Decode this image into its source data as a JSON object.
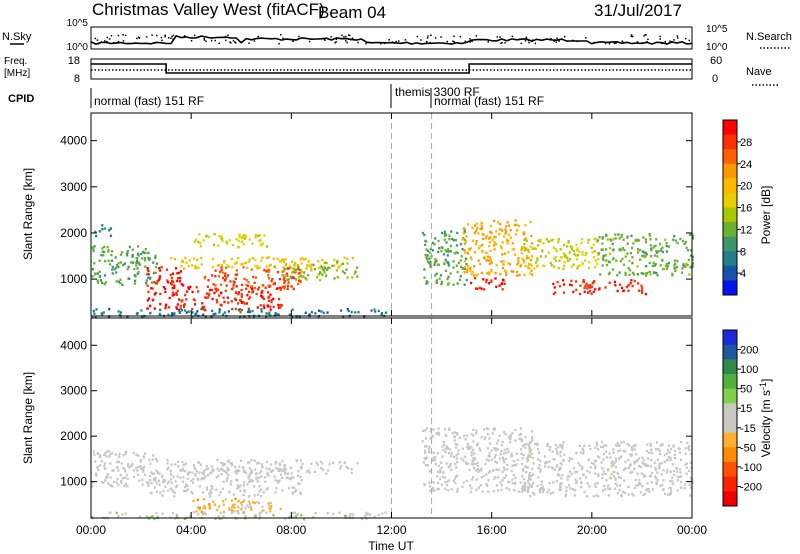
{
  "header": {
    "station": "Christmas Valley West (fitACF)",
    "beam": "Beam 04",
    "date": "31/Jul/2017"
  },
  "top_panels": {
    "nsky_label": "N.Sky",
    "nsearch_label": "N.Search",
    "noise_ticks": [
      "10^5",
      "10^0"
    ],
    "freq_label": "Freq.",
    "freq_unit": "[MHz]",
    "freq_ticks": [
      "18",
      "8"
    ],
    "nave_label": "Nave",
    "nave_ticks": [
      "60",
      "0"
    ],
    "cpid_label": "CPID",
    "cpid_segments": [
      {
        "label": "normal (fast) 151 RF",
        "start_hour": 0,
        "end_hour": 12.0
      },
      {
        "label": "themis 3300 RF",
        "start_hour": 12.0,
        "end_hour": 13.6
      },
      {
        "label": "normal (fast) 151 RF",
        "start_hour": 13.6,
        "end_hour": 24
      }
    ]
  },
  "xaxis": {
    "label": "Time UT",
    "ticks": [
      "00:00",
      "04:00",
      "08:00",
      "12:00",
      "16:00",
      "20:00",
      "00:00"
    ]
  },
  "colorbars": {
    "power": {
      "label": "Power [dB]",
      "ticks": [
        "28",
        "24",
        "20",
        "16",
        "12",
        "8",
        "4"
      ],
      "colors": [
        "#ff0000",
        "#ff3000",
        "#ff6000",
        "#ff9800",
        "#ffb800",
        "#e8d000",
        "#a8c800",
        "#6cb030",
        "#3c9868",
        "#207f88",
        "#1455a8",
        "#0014f0"
      ]
    },
    "velocity": {
      "label": "Velocity [m s",
      "label_exp": "-1",
      "ticks": [
        "200",
        "100",
        "50",
        "15",
        "-15",
        "-50",
        "-100",
        "-200"
      ],
      "colors": [
        "#1a2ad8",
        "#2058a0",
        "#2f8a4c",
        "#4fb23a",
        "#7ed24a",
        "#c8c8c0",
        "#c8c8c0",
        "#ffb030",
        "#ff8a00",
        "#ff5000",
        "#ff2000",
        "#ee0000"
      ]
    }
  },
  "chart_data": [
    {
      "type": "heatmap",
      "title": "Power",
      "xlabel": "",
      "ylabel": "Slant Range [km]",
      "xlim": [
        0,
        24
      ],
      "ylim": [
        200,
        4600
      ],
      "yticks": [
        "4000",
        "3000",
        "2000",
        "1000"
      ],
      "colorbar_range": [
        0,
        30
      ],
      "regions": [
        {
          "t0": 0.0,
          "t1": 2.6,
          "r0": 900,
          "r1": 1750,
          "value": 10
        },
        {
          "t0": 0.0,
          "t1": 0.8,
          "r0": 1950,
          "r1": 2200,
          "value": 8
        },
        {
          "t0": 2.2,
          "t1": 3.6,
          "r0": 350,
          "r1": 1300,
          "value": 28
        },
        {
          "t0": 3.6,
          "t1": 7.6,
          "r0": 350,
          "r1": 900,
          "value": 27
        },
        {
          "t0": 4.5,
          "t1": 8.4,
          "r0": 800,
          "r1": 1300,
          "value": 25
        },
        {
          "t0": 3.0,
          "t1": 10.5,
          "r0": 1250,
          "r1": 1500,
          "value": 18
        },
        {
          "t0": 7.6,
          "t1": 10.6,
          "r0": 1000,
          "r1": 1400,
          "value": 12
        },
        {
          "t0": 4.0,
          "t1": 7.0,
          "r0": 1700,
          "r1": 2000,
          "value": 16
        },
        {
          "t0": 13.2,
          "t1": 15.0,
          "r0": 900,
          "r1": 2100,
          "value": 10
        },
        {
          "t0": 14.8,
          "t1": 17.6,
          "r0": 1100,
          "r1": 2300,
          "value": 20
        },
        {
          "t0": 15.0,
          "t1": 16.6,
          "r0": 800,
          "r1": 1050,
          "value": 28
        },
        {
          "t0": 17.2,
          "t1": 20.4,
          "r0": 1250,
          "r1": 1900,
          "value": 15
        },
        {
          "t0": 18.4,
          "t1": 22.2,
          "r0": 700,
          "r1": 1000,
          "value": 27
        },
        {
          "t0": 20.2,
          "t1": 24.0,
          "r0": 1100,
          "r1": 2000,
          "value": 11
        },
        {
          "t0": 0.0,
          "t1": 11.8,
          "r0": 200,
          "r1": 380,
          "value": 6
        }
      ]
    },
    {
      "type": "heatmap",
      "title": "Velocity",
      "xlabel": "Time UT",
      "ylabel": "Slant Range [km]",
      "xlim": [
        0,
        24
      ],
      "ylim": [
        200,
        4600
      ],
      "yticks": [
        "4000",
        "3000",
        "2000",
        "1000"
      ],
      "colorbar_range": [
        -250,
        250
      ],
      "regions": [
        {
          "t0": 0.0,
          "t1": 2.6,
          "r0": 900,
          "r1": 1700,
          "value": 0
        },
        {
          "t0": 2.2,
          "t1": 8.4,
          "r0": 700,
          "r1": 1300,
          "value": 0
        },
        {
          "t0": 3.0,
          "t1": 10.6,
          "r0": 1200,
          "r1": 1500,
          "value": 0
        },
        {
          "t0": 4.0,
          "t1": 6.4,
          "r0": 350,
          "r1": 650,
          "value": -60
        },
        {
          "t0": 5.4,
          "t1": 7.6,
          "r0": 350,
          "r1": 600,
          "value": -45
        },
        {
          "t0": 13.2,
          "t1": 17.6,
          "r0": 800,
          "r1": 2200,
          "value": 0
        },
        {
          "t0": 17.2,
          "t1": 24.0,
          "r0": 700,
          "r1": 1900,
          "value": 0
        },
        {
          "t0": 0.0,
          "t1": 11.8,
          "r0": 200,
          "r1": 350,
          "value": 25
        }
      ]
    }
  ]
}
